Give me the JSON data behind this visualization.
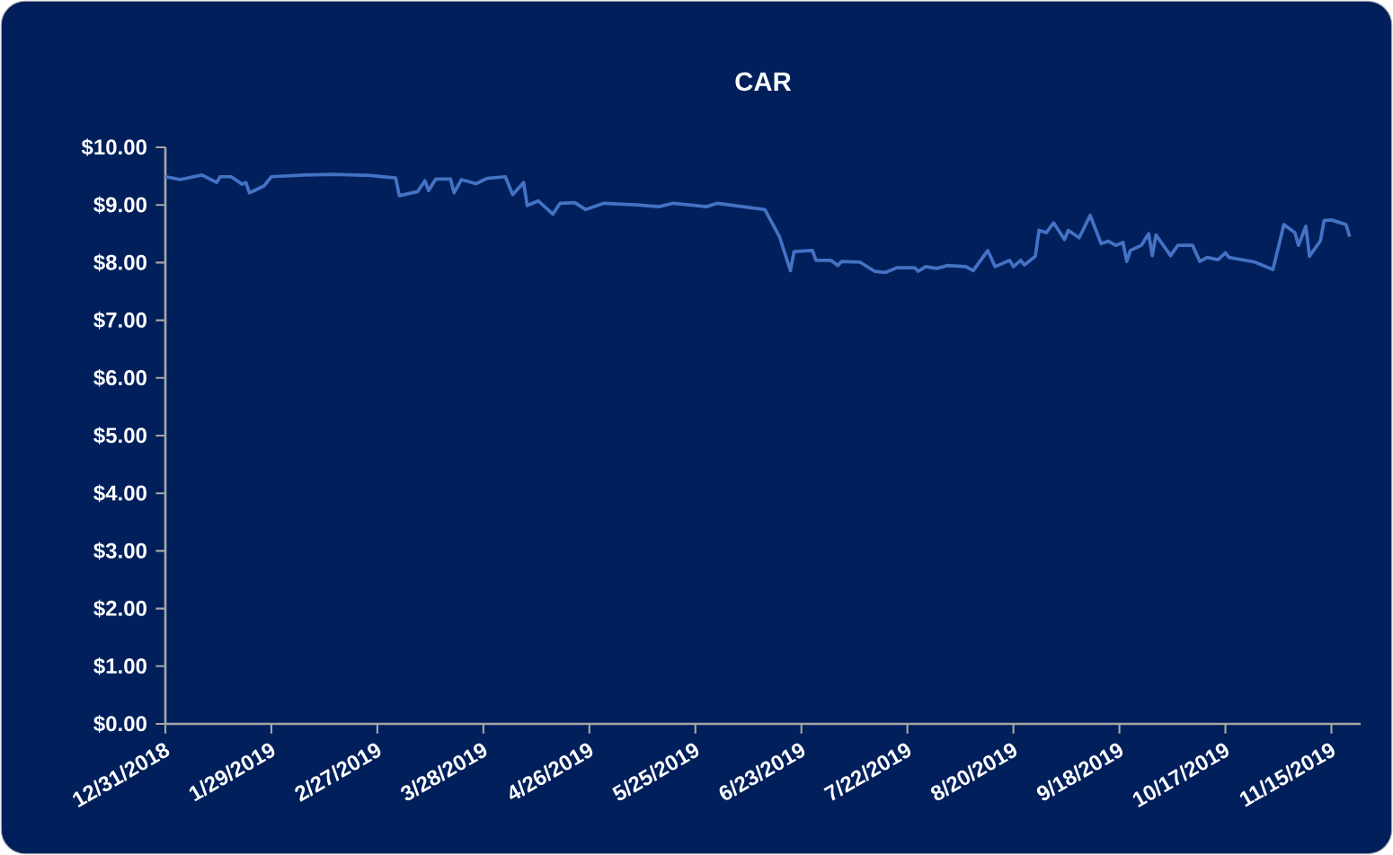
{
  "chart_data": {
    "type": "line",
    "title": "CAR",
    "grid": false,
    "marker": "none",
    "line_style": "solid",
    "xlim": [
      "2018-12-31",
      "2019-11-23"
    ],
    "ylim": [
      0,
      10
    ],
    "xticks": [
      {
        "value": "2018-12-31",
        "label": "12/31/2018"
      },
      {
        "value": "2019-01-29",
        "label": "1/29/2019"
      },
      {
        "value": "2019-02-27",
        "label": "2/27/2019"
      },
      {
        "value": "2019-03-28",
        "label": "3/28/2019"
      },
      {
        "value": "2019-04-26",
        "label": "4/26/2019"
      },
      {
        "value": "2019-05-25",
        "label": "5/25/2019"
      },
      {
        "value": "2019-06-23",
        "label": "6/23/2019"
      },
      {
        "value": "2019-07-22",
        "label": "7/22/2019"
      },
      {
        "value": "2019-08-20",
        "label": "8/20/2019"
      },
      {
        "value": "2019-09-18",
        "label": "9/18/2019"
      },
      {
        "value": "2019-10-17",
        "label": "10/17/2019"
      },
      {
        "value": "2019-11-15",
        "label": "11/15/2019"
      }
    ],
    "yticks": [
      {
        "value": 0,
        "label": "$0.00"
      },
      {
        "value": 1,
        "label": "$1.00"
      },
      {
        "value": 2,
        "label": "$2.00"
      },
      {
        "value": 3,
        "label": "$3.00"
      },
      {
        "value": 4,
        "label": "$4.00"
      },
      {
        "value": 5,
        "label": "$5.00"
      },
      {
        "value": 6,
        "label": "$6.00"
      },
      {
        "value": 7,
        "label": "$7.00"
      },
      {
        "value": 8,
        "label": "$8.00"
      },
      {
        "value": 9,
        "label": "$9.00"
      },
      {
        "value": 10,
        "label": "$10.00"
      }
    ],
    "x": [
      "2018-12-31",
      "2019-01-04",
      "2019-01-10",
      "2019-01-14",
      "2019-01-15",
      "2019-01-18",
      "2019-01-21",
      "2019-01-22",
      "2019-01-23",
      "2019-01-27",
      "2019-01-29",
      "2019-02-07",
      "2019-02-15",
      "2019-02-25",
      "2019-03-04",
      "2019-03-05",
      "2019-03-10",
      "2019-03-12",
      "2019-03-13",
      "2019-03-15",
      "2019-03-19",
      "2019-03-20",
      "2019-03-22",
      "2019-03-26",
      "2019-03-29",
      "2019-04-03",
      "2019-04-05",
      "2019-04-08",
      "2019-04-09",
      "2019-04-12",
      "2019-04-16",
      "2019-04-18",
      "2019-04-22",
      "2019-04-25",
      "2019-04-30",
      "2019-05-09",
      "2019-05-15",
      "2019-05-19",
      "2019-05-28",
      "2019-05-31",
      "2019-06-13",
      "2019-06-17",
      "2019-06-20",
      "2019-06-21",
      "2019-06-26",
      "2019-06-27",
      "2019-07-01",
      "2019-07-03",
      "2019-07-04",
      "2019-07-09",
      "2019-07-13",
      "2019-07-16",
      "2019-07-18",
      "2019-07-19",
      "2019-07-24",
      "2019-07-25",
      "2019-07-27",
      "2019-07-30",
      "2019-08-02",
      "2019-08-07",
      "2019-08-09",
      "2019-08-13",
      "2019-08-15",
      "2019-08-19",
      "2019-08-20",
      "2019-08-22",
      "2019-08-23",
      "2019-08-26",
      "2019-08-27",
      "2019-08-29",
      "2019-08-31",
      "2019-09-03",
      "2019-09-04",
      "2019-09-07",
      "2019-09-10",
      "2019-09-13",
      "2019-09-15",
      "2019-09-17",
      "2019-09-19",
      "2019-09-20",
      "2019-09-21",
      "2019-09-24",
      "2019-09-26",
      "2019-09-27",
      "2019-09-28",
      "2019-10-02",
      "2019-10-04",
      "2019-10-08",
      "2019-10-10",
      "2019-10-12",
      "2019-10-15",
      "2019-10-17",
      "2019-10-18",
      "2019-10-25",
      "2019-10-30",
      "2019-11-02",
      "2019-11-05",
      "2019-11-06",
      "2019-11-08",
      "2019-11-09",
      "2019-11-12",
      "2019-11-13",
      "2019-11-15",
      "2019-11-19",
      "2019-11-20"
    ],
    "series": [
      {
        "color": "#4472c4",
        "values": [
          9.49,
          9.44,
          9.52,
          9.39,
          9.49,
          9.49,
          9.36,
          9.39,
          9.21,
          9.33,
          9.49,
          9.52,
          9.53,
          9.51,
          9.47,
          9.16,
          9.23,
          9.42,
          9.25,
          9.45,
          9.45,
          9.21,
          9.44,
          9.37,
          9.46,
          9.49,
          9.18,
          9.39,
          8.99,
          9.07,
          8.84,
          9.03,
          9.04,
          8.92,
          9.03,
          9.0,
          8.97,
          9.03,
          8.97,
          9.03,
          8.92,
          8.45,
          7.86,
          8.19,
          8.21,
          8.04,
          8.04,
          7.95,
          8.02,
          8.01,
          7.85,
          7.83,
          7.88,
          7.91,
          7.91,
          7.85,
          7.93,
          7.9,
          7.95,
          7.93,
          7.86,
          8.21,
          7.93,
          8.04,
          7.93,
          8.04,
          7.96,
          8.11,
          8.56,
          8.52,
          8.69,
          8.4,
          8.56,
          8.43,
          8.82,
          8.33,
          8.37,
          8.3,
          8.35,
          8.02,
          8.21,
          8.3,
          8.5,
          8.12,
          8.48,
          8.12,
          8.3,
          8.3,
          8.02,
          8.09,
          8.05,
          8.17,
          8.09,
          8.01,
          7.88,
          8.66,
          8.52,
          8.3,
          8.63,
          8.11,
          8.38,
          8.73,
          8.74,
          8.66,
          8.45
        ]
      }
    ]
  }
}
